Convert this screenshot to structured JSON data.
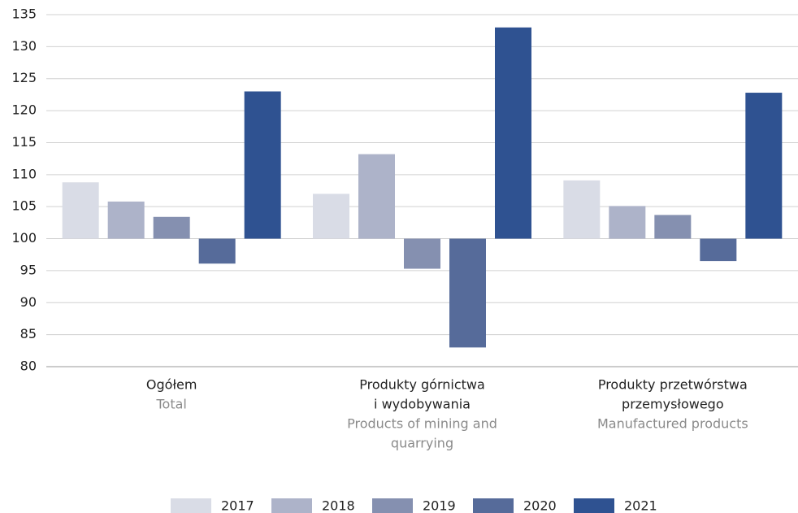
{
  "chart_data": {
    "type": "bar",
    "categories": [
      [
        "Ogółem"
      ],
      [
        "Produkty górnictwa",
        "i wydobywania"
      ],
      [
        "Produkty przetwórstwa",
        "przemysłowego"
      ]
    ],
    "categories_en": [
      [
        "Total"
      ],
      [
        "Products of mining and",
        "quarrying"
      ],
      [
        "Manufactured products"
      ]
    ],
    "series": [
      {
        "name": "2017",
        "color": "#d9dce6",
        "values": [
          108.8,
          107.0,
          109.1
        ]
      },
      {
        "name": "2018",
        "color": "#adb3c9",
        "values": [
          105.8,
          113.2,
          105.1
        ]
      },
      {
        "name": "2019",
        "color": "#8590b0",
        "values": [
          103.4,
          95.3,
          103.7
        ]
      },
      {
        "name": "2020",
        "color": "#566b9a",
        "values": [
          96.1,
          83.0,
          96.5
        ]
      },
      {
        "name": "2021",
        "color": "#2f5291",
        "values": [
          123.0,
          133.0,
          122.8
        ]
      }
    ],
    "bar_base": 100,
    "ylim": [
      80,
      135
    ],
    "yticks": [
      80,
      85,
      90,
      95,
      100,
      105,
      110,
      115,
      120,
      125,
      130,
      135
    ],
    "grid": true,
    "legend": "bottom"
  }
}
